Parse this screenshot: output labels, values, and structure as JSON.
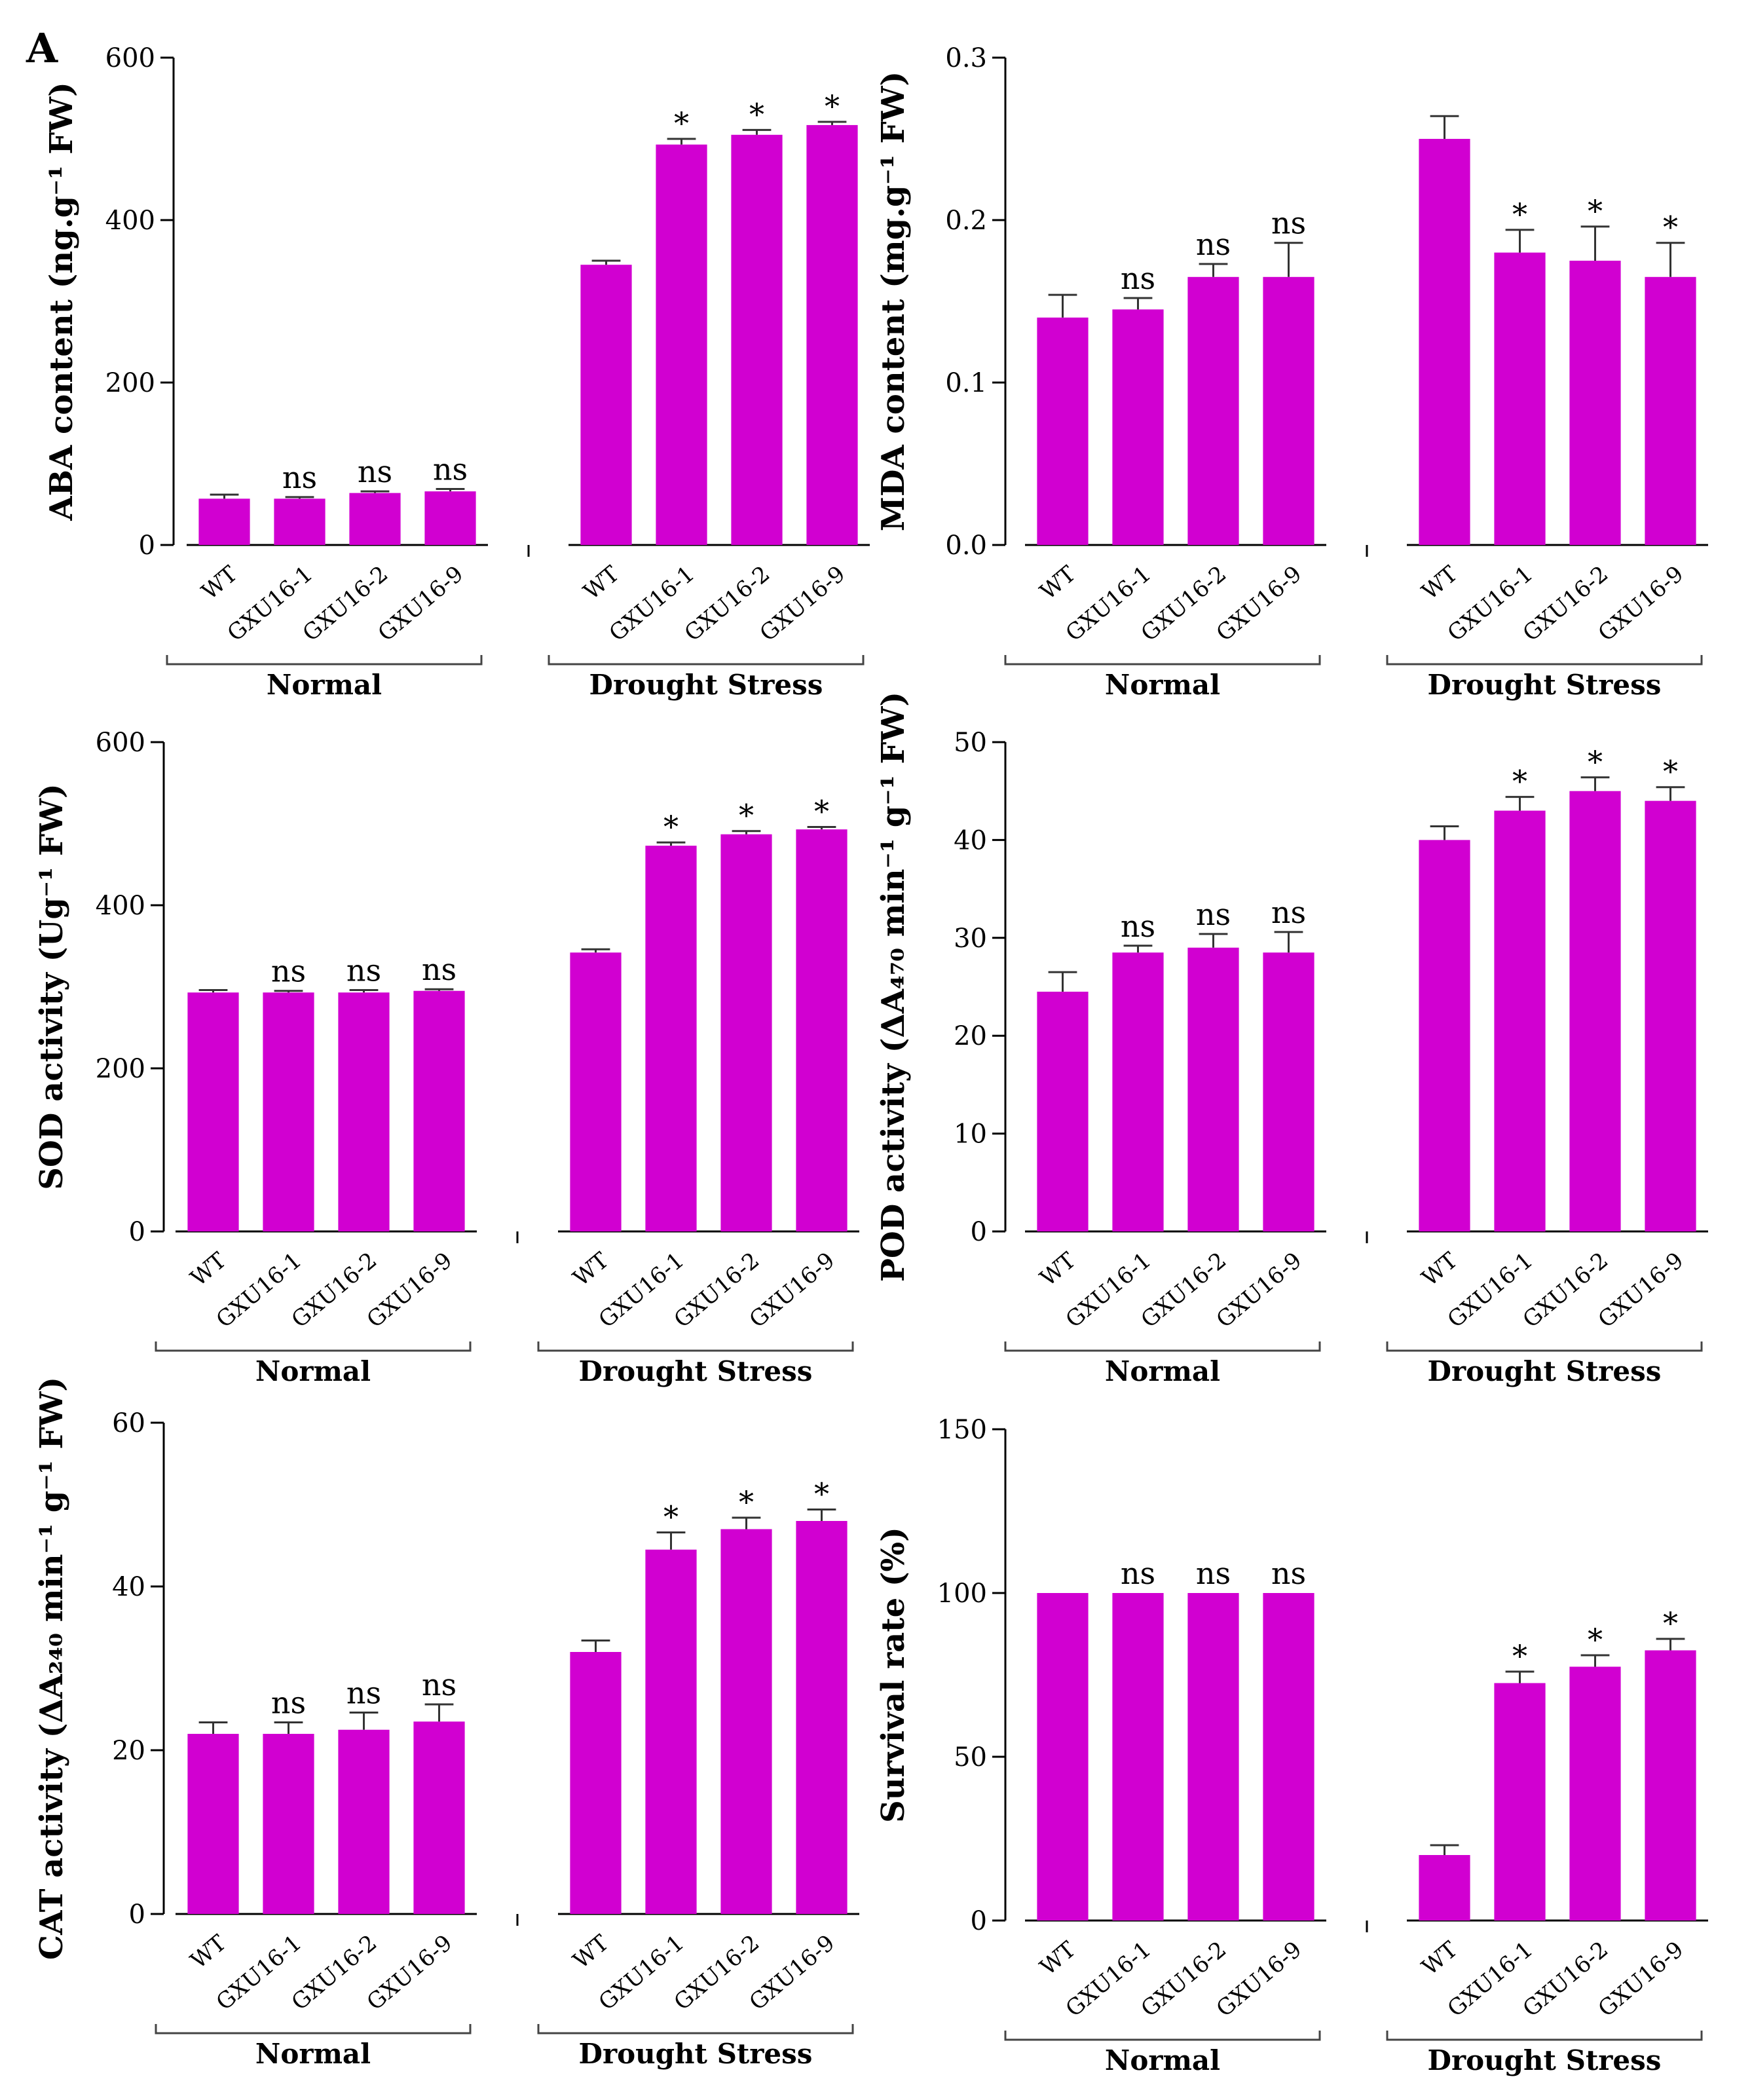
{
  "figure": {
    "panel_label": "A",
    "bar_color": "#d100d1",
    "axis_color": "#000000"
  },
  "chart_data": [
    {
      "type": "bar",
      "title": "",
      "ylabel": "ABA content (ng.g⁻¹ FW)",
      "ylim": [
        0,
        600
      ],
      "yticks": [
        "0",
        "200",
        "400",
        "600"
      ],
      "groups": [
        {
          "name": "Normal",
          "categories": [
            "WT",
            "GXU16-1",
            "GXU16-2",
            "GXU16-9"
          ],
          "values": [
            57,
            57,
            64,
            66
          ],
          "errors": [
            5,
            2,
            2,
            3
          ],
          "annotations": [
            "",
            "ns",
            "ns",
            "ns"
          ]
        },
        {
          "name": "Drought Stress",
          "categories": [
            "WT",
            "GXU16-1",
            "GXU16-2",
            "GXU16-9"
          ],
          "values": [
            345,
            493,
            505,
            517
          ],
          "errors": [
            5,
            7,
            6,
            4
          ],
          "annotations": [
            "",
            "*",
            "*",
            "*"
          ]
        }
      ]
    },
    {
      "type": "bar",
      "title": "",
      "ylabel": "MDA content (mg.g⁻¹ FW)",
      "ylim": [
        0,
        0.3
      ],
      "yticks": [
        "0.0",
        "0.1",
        "0.2",
        "0.3"
      ],
      "groups": [
        {
          "name": "Normal",
          "categories": [
            "WT",
            "GXU16-1",
            "GXU16-2",
            "GXU16-9"
          ],
          "values": [
            0.14,
            0.145,
            0.165,
            0.165
          ],
          "errors": [
            0.014,
            0.007,
            0.008,
            0.021
          ],
          "annotations": [
            "",
            "ns",
            "ns",
            "ns"
          ]
        },
        {
          "name": "Drought Stress",
          "categories": [
            "WT",
            "GXU16-1",
            "GXU16-2",
            "GXU16-9"
          ],
          "values": [
            0.25,
            0.18,
            0.175,
            0.165
          ],
          "errors": [
            0.014,
            0.014,
            0.021,
            0.021
          ],
          "annotations": [
            "",
            "*",
            "*",
            "*"
          ]
        }
      ]
    },
    {
      "type": "bar",
      "title": "",
      "ylabel": "SOD activity (Ug⁻¹ FW)",
      "ylim": [
        0,
        600
      ],
      "yticks": [
        "0",
        "200",
        "400",
        "600"
      ],
      "groups": [
        {
          "name": "Normal",
          "categories": [
            "WT",
            "GXU16-1",
            "GXU16-2",
            "GXU16-9"
          ],
          "values": [
            293,
            293,
            293,
            295
          ],
          "errors": [
            3,
            2,
            3,
            2
          ],
          "annotations": [
            "",
            "ns",
            "ns",
            "ns"
          ]
        },
        {
          "name": "Drought Stress",
          "categories": [
            "WT",
            "GXU16-1",
            "GXU16-2",
            "GXU16-9"
          ],
          "values": [
            342,
            473,
            487,
            493
          ],
          "errors": [
            4,
            4,
            4,
            3
          ],
          "annotations": [
            "",
            "*",
            "*",
            "*"
          ]
        }
      ]
    },
    {
      "type": "bar",
      "title": "",
      "ylabel": "POD activity (ΔA₄₇₀ min⁻¹ g⁻¹ FW)",
      "ylim": [
        0,
        50
      ],
      "yticks": [
        "0",
        "10",
        "20",
        "30",
        "40",
        "50"
      ],
      "groups": [
        {
          "name": "Normal",
          "categories": [
            "WT",
            "GXU16-1",
            "GXU16-2",
            "GXU16-9"
          ],
          "values": [
            24.5,
            28.5,
            29,
            28.5
          ],
          "errors": [
            2,
            0.7,
            1.4,
            2.1
          ],
          "annotations": [
            "",
            "ns",
            "ns",
            "ns"
          ]
        },
        {
          "name": "Drought Stress",
          "categories": [
            "WT",
            "GXU16-1",
            "GXU16-2",
            "GXU16-9"
          ],
          "values": [
            40,
            43,
            45,
            44
          ],
          "errors": [
            1.4,
            1.4,
            1.4,
            1.4
          ],
          "annotations": [
            "",
            "*",
            "*",
            "*"
          ]
        }
      ]
    },
    {
      "type": "bar",
      "title": "",
      "ylabel": "CAT activity (ΔA₂₄₀ min⁻¹ g⁻¹ FW)",
      "ylim": [
        0,
        60
      ],
      "yticks": [
        "0",
        "20",
        "40",
        "60"
      ],
      "groups": [
        {
          "name": "Normal",
          "categories": [
            "WT",
            "GXU16-1",
            "GXU16-2",
            "GXU16-9"
          ],
          "values": [
            22,
            22,
            22.5,
            23.5
          ],
          "errors": [
            1.4,
            1.4,
            2.1,
            2.1
          ],
          "annotations": [
            "",
            "ns",
            "ns",
            "ns"
          ]
        },
        {
          "name": "Drought Stress",
          "categories": [
            "WT",
            "GXU16-1",
            "GXU16-2",
            "GXU16-9"
          ],
          "values": [
            32,
            44.5,
            47,
            48
          ],
          "errors": [
            1.4,
            2.1,
            1.4,
            1.4
          ],
          "annotations": [
            "",
            "*",
            "*",
            "*"
          ]
        }
      ]
    },
    {
      "type": "bar",
      "title": "",
      "ylabel": "Survival rate (%)",
      "ylim": [
        0,
        150
      ],
      "yticks": [
        "0",
        "50",
        "100",
        "150"
      ],
      "groups": [
        {
          "name": "Normal",
          "categories": [
            "WT",
            "GXU16-1",
            "GXU16-2",
            "GXU16-9"
          ],
          "values": [
            100,
            100,
            100,
            100
          ],
          "errors": [
            0,
            0,
            0,
            0
          ],
          "annotations": [
            "",
            "ns",
            "ns",
            "ns"
          ]
        },
        {
          "name": "Drought Stress",
          "categories": [
            "WT",
            "GXU16-1",
            "GXU16-2",
            "GXU16-9"
          ],
          "values": [
            20,
            72.5,
            77.5,
            82.5
          ],
          "errors": [
            3,
            3.5,
            3.5,
            3.5
          ],
          "annotations": [
            "",
            "*",
            "*",
            "*"
          ]
        }
      ]
    }
  ]
}
